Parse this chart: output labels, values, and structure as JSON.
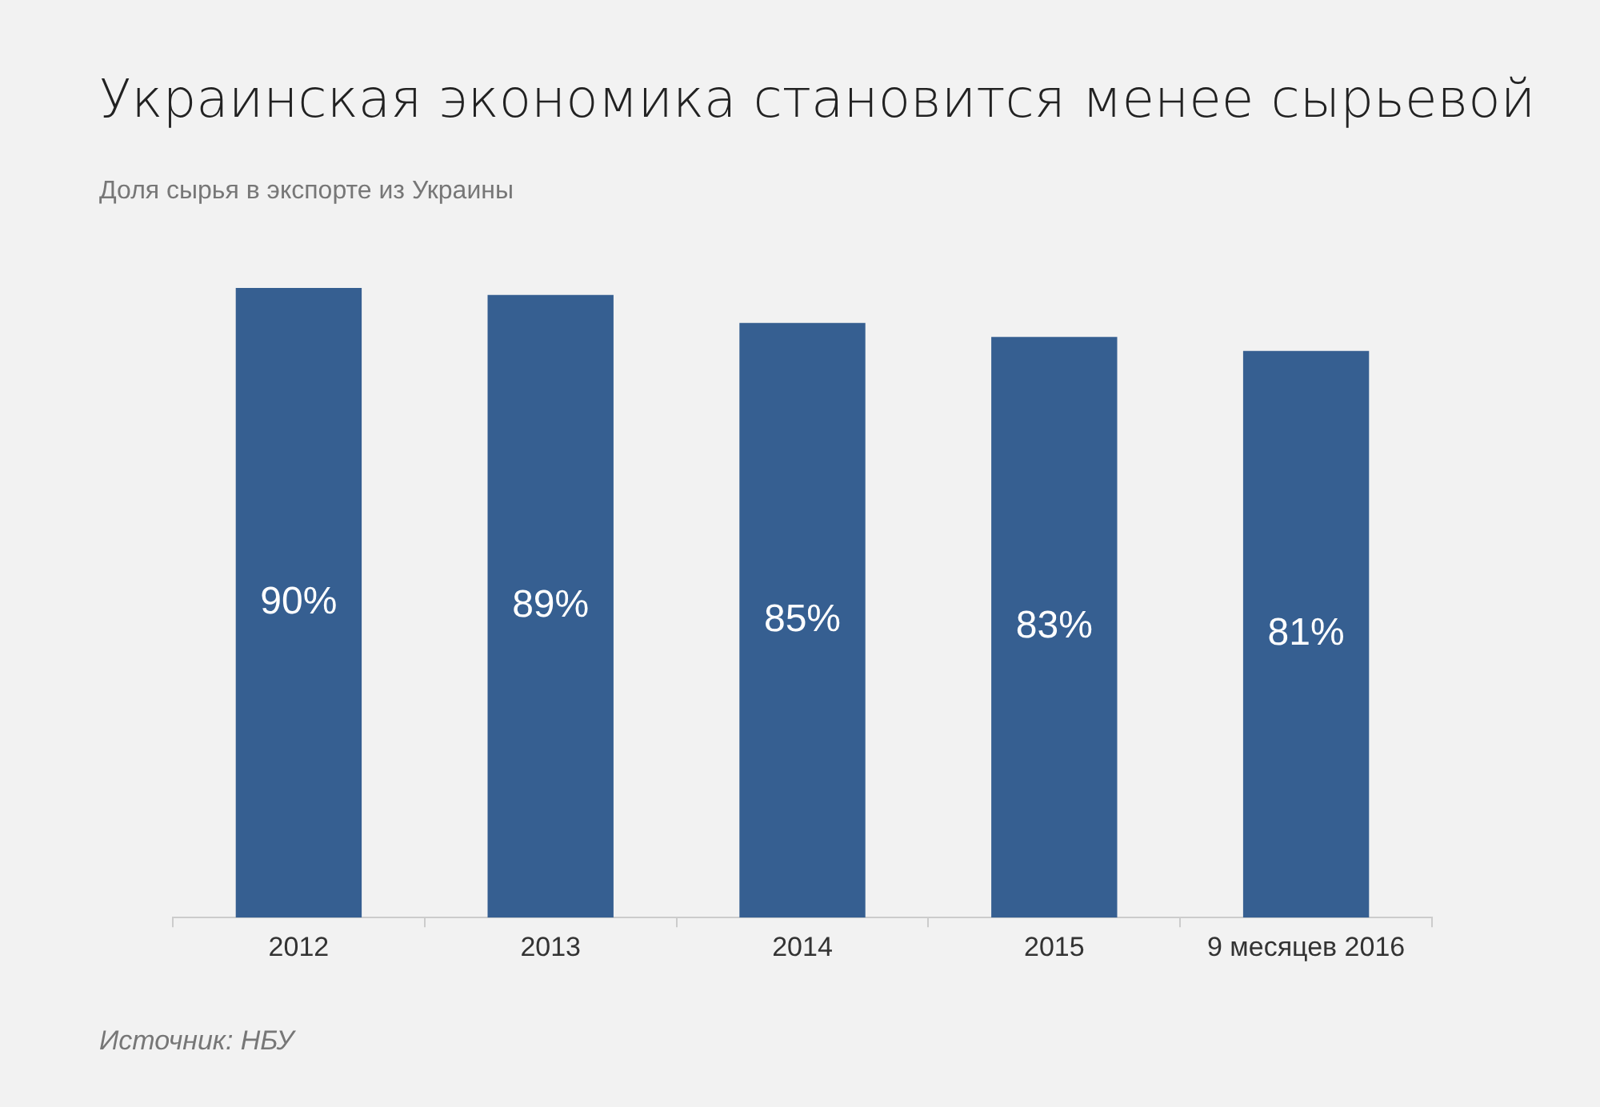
{
  "chart_data": {
    "type": "bar",
    "title": "Украинская экономика становится менее сырьевой",
    "subtitle": "Доля сырья в экспорте из Украины",
    "categories": [
      "2012",
      "2013",
      "2014",
      "2015",
      "9 месяцев 2016"
    ],
    "values": [
      90,
      89,
      85,
      83,
      81
    ],
    "color": "#365f91",
    "value_labels": [
      "90%",
      "89%",
      "85%",
      "83%",
      "81%"
    ],
    "tick_labels": "x",
    "annotations": [
      "Источник: НБУ"
    ]
  }
}
